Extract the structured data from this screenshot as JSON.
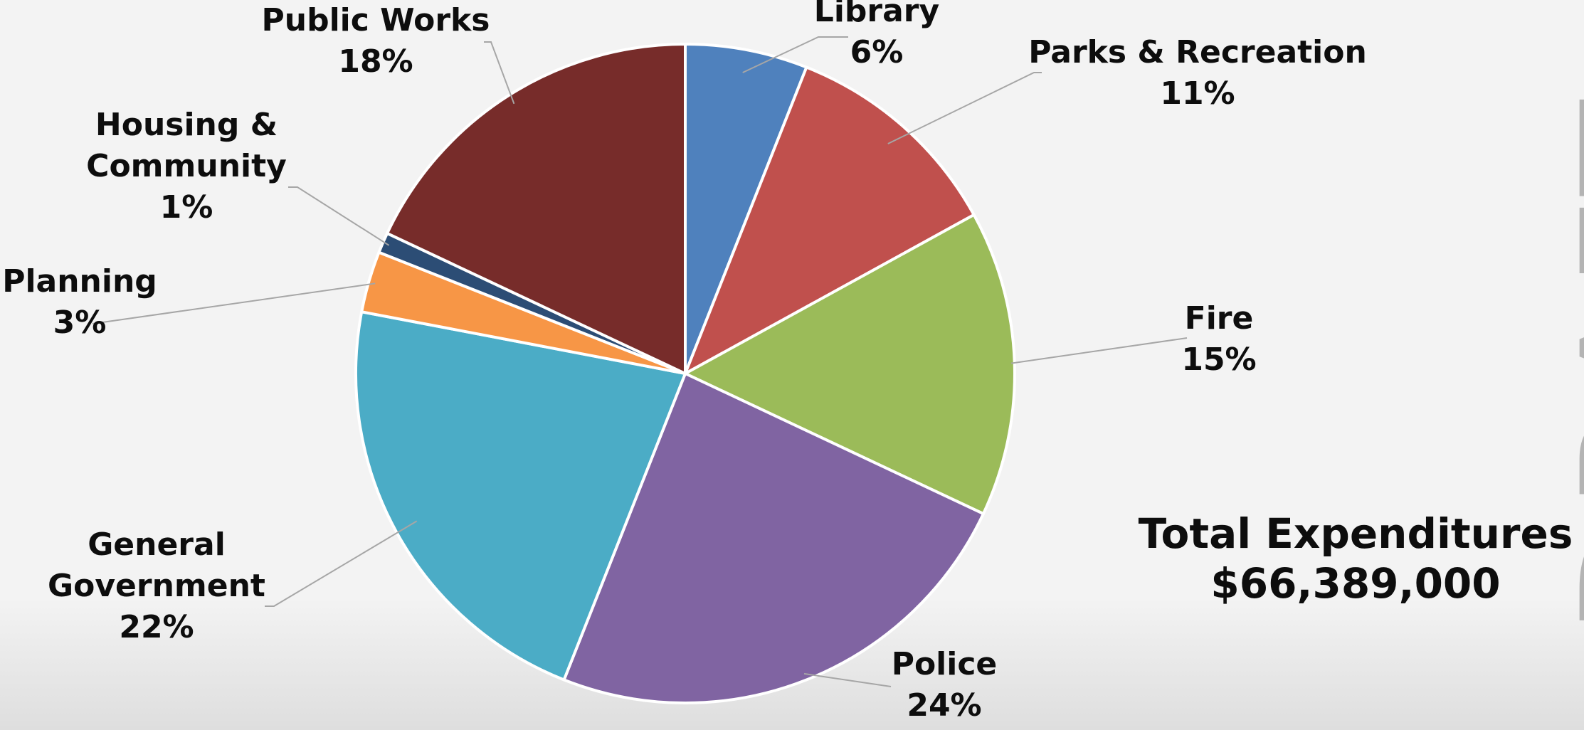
{
  "chart_data": {
    "type": "pie",
    "title": "",
    "slices": [
      {
        "name_lines": [
          "Library"
        ],
        "percent_label": "6%",
        "value": 6,
        "color": "#4f81bd"
      },
      {
        "name_lines": [
          "Parks & Recreation"
        ],
        "percent_label": "11%",
        "value": 11,
        "color": "#c0504d"
      },
      {
        "name_lines": [
          "Fire"
        ],
        "percent_label": "15%",
        "value": 15,
        "color": "#9bbb59"
      },
      {
        "name_lines": [
          "Police"
        ],
        "percent_label": "24%",
        "value": 24,
        "color": "#8064a2"
      },
      {
        "name_lines": [
          "General",
          "Government"
        ],
        "percent_label": "22%",
        "value": 22,
        "color": "#4bacc6"
      },
      {
        "name_lines": [
          "Planning"
        ],
        "percent_label": "3%",
        "value": 3,
        "color": "#f79646"
      },
      {
        "name_lines": [
          "Housing &",
          "Community"
        ],
        "percent_label": "1%",
        "value": 1,
        "color": "#2c4d75"
      },
      {
        "name_lines": [
          "Public Works"
        ],
        "percent_label": "18%",
        "value": 18,
        "color": "#772c2a"
      }
    ],
    "start": "12 o'clock, clockwise",
    "legend": "none (direct labels with leader lines)"
  },
  "total": {
    "label": "Total Expenditures",
    "amount": "$66,389,000"
  },
  "watermark": {
    "text": "DRAFT",
    "color": "#b4b4b4"
  }
}
